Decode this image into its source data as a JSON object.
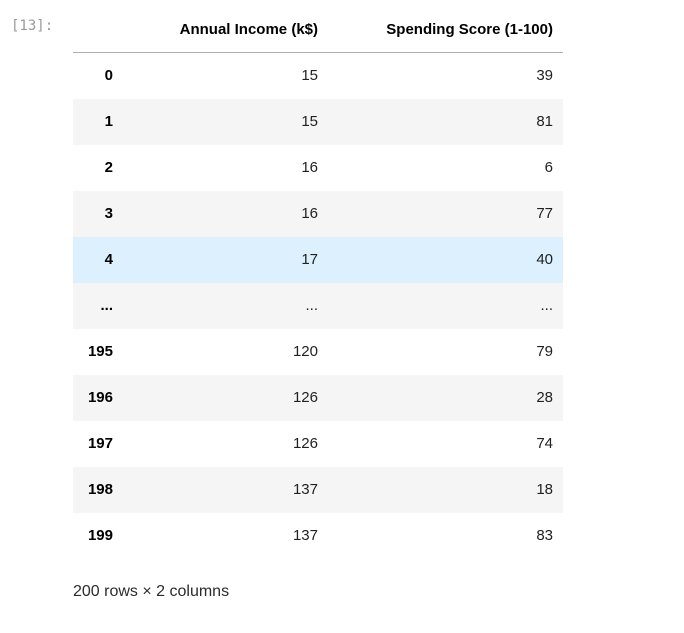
{
  "prompt": {
    "label": "[13]:"
  },
  "dataframe": {
    "columns": [
      "Annual Income (k$)",
      "Spending Score (1-100)"
    ],
    "index_header": "",
    "rows": [
      {
        "index": "0",
        "values": [
          "15",
          "39"
        ],
        "highlighted": false
      },
      {
        "index": "1",
        "values": [
          "15",
          "81"
        ],
        "highlighted": false
      },
      {
        "index": "2",
        "values": [
          "16",
          "6"
        ],
        "highlighted": false
      },
      {
        "index": "3",
        "values": [
          "16",
          "77"
        ],
        "highlighted": false
      },
      {
        "index": "4",
        "values": [
          "17",
          "40"
        ],
        "highlighted": true
      },
      {
        "index": "...",
        "values": [
          "...",
          "..."
        ],
        "highlighted": false
      },
      {
        "index": "195",
        "values": [
          "120",
          "79"
        ],
        "highlighted": false
      },
      {
        "index": "196",
        "values": [
          "126",
          "28"
        ],
        "highlighted": false
      },
      {
        "index": "197",
        "values": [
          "126",
          "74"
        ],
        "highlighted": false
      },
      {
        "index": "198",
        "values": [
          "137",
          "18"
        ],
        "highlighted": false
      },
      {
        "index": "199",
        "values": [
          "137",
          "83"
        ],
        "highlighted": false
      }
    ],
    "summary": "200 rows × 2 columns"
  },
  "colors": {
    "stripe": "#f5f5f5",
    "row_highlight": "#dcf1fd",
    "header_border": "#b0b0b0",
    "prompt_text": "#999999"
  }
}
